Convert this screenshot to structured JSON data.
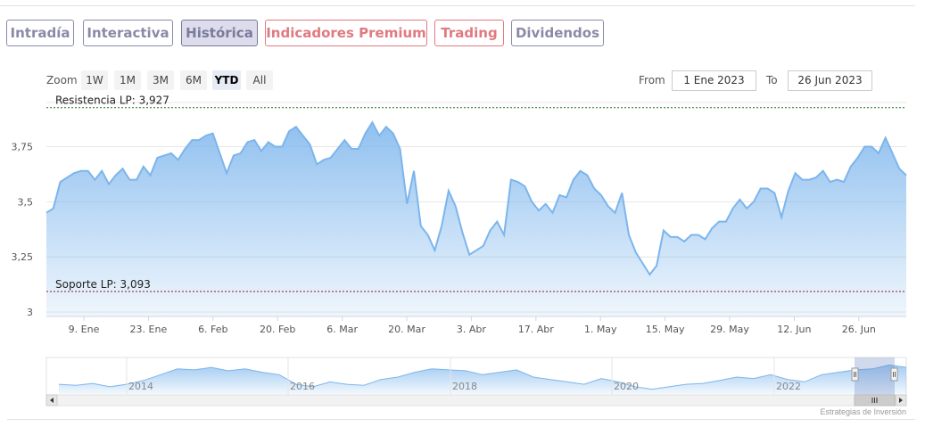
{
  "tabs": [
    {
      "label": "Intradía",
      "color": "#8a8aa8"
    },
    {
      "label": "Interactiva",
      "color": "#8a8aa8"
    },
    {
      "label": "Histórica",
      "color": "#7a7a9a",
      "active": true
    },
    {
      "label": "Indicadores Premium",
      "color": "#e07a80"
    },
    {
      "label": "Trading",
      "color": "#e07a80"
    },
    {
      "label": "Dividendos",
      "color": "#8a8aa8"
    }
  ],
  "range_selector": {
    "zoom_label": "Zoom",
    "buttons": [
      "1W",
      "1M",
      "3M",
      "6M",
      "YTD",
      "All"
    ],
    "selected": "YTD",
    "from_label": "From",
    "from_value": "1 Ene 2023",
    "to_label": "To",
    "to_value": "26 Jun 2023"
  },
  "chart_data": {
    "type": "area",
    "title": "",
    "xlabel": "",
    "ylabel": "",
    "ylim": [
      2.98,
      3.95
    ],
    "x_ticks": [
      "9. Ene",
      "23. Ene",
      "6. Feb",
      "20. Feb",
      "6. Mar",
      "20. Mar",
      "3. Abr",
      "17. Abr",
      "1. May",
      "15. May",
      "29. May",
      "12. Jun",
      "26. Jun"
    ],
    "y_ticks": [
      "3",
      "3,25",
      "3,5",
      "3,75"
    ],
    "y_tick_values": [
      3,
      3.25,
      3.5,
      3.75
    ],
    "grid": "horizontal",
    "series": [
      {
        "values": [
          3.45,
          3.47,
          3.59,
          3.61,
          3.63,
          3.64,
          3.64,
          3.6,
          3.64,
          3.58,
          3.62,
          3.65,
          3.6,
          3.6,
          3.66,
          3.62,
          3.7,
          3.71,
          3.72,
          3.69,
          3.74,
          3.78,
          3.78,
          3.8,
          3.81,
          3.72,
          3.63,
          3.71,
          3.72,
          3.77,
          3.78,
          3.73,
          3.77,
          3.75,
          3.75,
          3.82,
          3.84,
          3.8,
          3.76,
          3.67,
          3.69,
          3.7,
          3.74,
          3.78,
          3.74,
          3.74,
          3.81,
          3.86,
          3.8,
          3.84,
          3.81,
          3.74,
          3.49,
          3.64,
          3.39,
          3.35,
          3.28,
          3.39,
          3.55,
          3.48,
          3.36,
          3.26,
          3.28,
          3.3,
          3.37,
          3.41,
          3.35,
          3.6,
          3.59,
          3.57,
          3.5,
          3.46,
          3.49,
          3.45,
          3.53,
          3.52,
          3.6,
          3.64,
          3.62,
          3.56,
          3.53,
          3.48,
          3.45,
          3.54,
          3.35,
          3.27,
          3.22,
          3.17,
          3.21,
          3.37,
          3.34,
          3.34,
          3.32,
          3.35,
          3.35,
          3.33,
          3.38,
          3.41,
          3.41,
          3.47,
          3.51,
          3.47,
          3.5,
          3.56,
          3.56,
          3.54,
          3.43,
          3.55,
          3.63,
          3.6,
          3.6,
          3.61,
          3.64,
          3.59,
          3.6,
          3.59,
          3.66,
          3.7,
          3.75,
          3.75,
          3.72,
          3.79,
          3.72,
          3.65,
          3.62
        ],
        "color": "#7cb5ec"
      }
    ],
    "plot_lines": [
      {
        "label": "Resistencia LP: 3,927",
        "value": 3.927,
        "color": "#1a6a1a"
      },
      {
        "label": "Soporte LP: 3,093",
        "value": 3.093,
        "color": "#8a1a1a"
      }
    ],
    "navigator": {
      "year_labels": [
        "2014",
        "2016",
        "2018",
        "2020",
        "2022"
      ],
      "values": [
        3.3,
        3.28,
        3.32,
        3.25,
        3.3,
        3.38,
        3.5,
        3.62,
        3.6,
        3.65,
        3.58,
        3.62,
        3.55,
        3.5,
        3.3,
        3.25,
        3.35,
        3.3,
        3.28,
        3.4,
        3.45,
        3.55,
        3.62,
        3.6,
        3.58,
        3.5,
        3.55,
        3.6,
        3.45,
        3.4,
        3.35,
        3.3,
        3.42,
        3.35,
        3.25,
        3.2,
        3.25,
        3.3,
        3.32,
        3.38,
        3.45,
        3.42,
        3.5,
        3.4,
        3.35,
        3.5,
        3.55,
        3.6,
        3.62,
        3.7,
        3.65
      ]
    },
    "credit": "Estrategias de Inversión"
  }
}
